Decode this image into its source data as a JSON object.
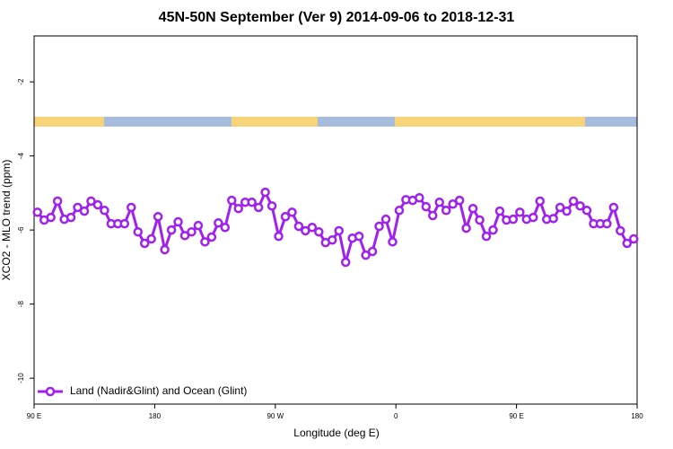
{
  "chart_data": {
    "type": "line",
    "title": "45N-50N September (Ver 9)   2014-09-06 to 2018-12-31",
    "xlabel": "Longitude (deg E)",
    "ylabel": "XCO2 - MLO trend (ppm)",
    "x": [
      92.5,
      97.5,
      102.5,
      107.5,
      112.5,
      117.5,
      122.5,
      127.5,
      132.5,
      137.5,
      142.5,
      147.5,
      152.5,
      157.5,
      162.5,
      167.5,
      172.5,
      177.5,
      182.5,
      187.5,
      192.5,
      197.5,
      202.5,
      207.5,
      212.5,
      217.5,
      222.5,
      227.5,
      232.5,
      237.5,
      242.5,
      247.5,
      252.5,
      257.5,
      262.5,
      267.5,
      272.5,
      277.5,
      282.5,
      287.5,
      292.5,
      297.5,
      302.5,
      307.5,
      312.5,
      317.5,
      322.5,
      327.5,
      332.5,
      337.5,
      342.5,
      347.5,
      352.5,
      357.5,
      362.5,
      367.5,
      372.5,
      377.5,
      382.5,
      387.5,
      392.5,
      397.5,
      402.5,
      407.5,
      412.5,
      417.5,
      422.5,
      427.5,
      432.5,
      437.5,
      442.5,
      447.5,
      452.5,
      457.5,
      462.5,
      467.5,
      472.5,
      477.5,
      482.5,
      487.5,
      492.5,
      497.5,
      502.5,
      507.5,
      512.5,
      517.5,
      522.5,
      527.5,
      532.5,
      537.5
    ],
    "series": [
      {
        "name": "Land (Nadir&Glint) and Ocean (Glint)",
        "color": "#a020f0",
        "values": [
          -5.52,
          -5.73,
          -5.66,
          -5.22,
          -5.71,
          -5.66,
          -5.39,
          -5.49,
          -5.22,
          -5.32,
          -5.47,
          -5.83,
          -5.83,
          -5.83,
          -5.39,
          -6.05,
          -6.36,
          -6.24,
          -5.64,
          -6.53,
          -6.0,
          -5.78,
          -6.15,
          -6.05,
          -5.88,
          -6.32,
          -6.19,
          -5.81,
          -5.93,
          -5.2,
          -5.42,
          -5.25,
          -5.25,
          -5.39,
          -4.98,
          -5.35,
          -6.17,
          -5.64,
          -5.52,
          -5.9,
          -6.02,
          -5.93,
          -6.05,
          -6.34,
          -6.27,
          -6.02,
          -6.87,
          -6.22,
          -6.17,
          -6.68,
          -6.58,
          -5.9,
          -5.71,
          -6.32,
          -5.47,
          -5.18,
          -5.2,
          -5.13,
          -5.37,
          -5.61,
          -5.25,
          -5.47,
          -5.3,
          -5.2,
          -5.95,
          -5.42,
          -5.73,
          -6.17,
          -6.0,
          -5.49,
          -5.73,
          -5.71,
          -5.52,
          -5.71,
          -5.66,
          -5.22,
          -5.71,
          -5.69,
          -5.39,
          -5.49,
          -5.22,
          -5.35,
          -5.47,
          -5.83,
          -5.83,
          -5.83,
          -5.39,
          -6.02,
          -6.36,
          -6.24
        ]
      }
    ],
    "xlim": [
      90,
      540
    ],
    "xticks": [
      {
        "value": 90,
        "label": "90 E"
      },
      {
        "value": 180,
        "label": "180"
      },
      {
        "value": 270,
        "label": "90 W"
      },
      {
        "value": 360,
        "label": "0"
      },
      {
        "value": 450,
        "label": "90 E"
      },
      {
        "value": 540,
        "label": "180"
      }
    ],
    "ylim": [
      -10.7,
      -0.76
    ],
    "yticks": [
      -10,
      -8,
      -6,
      -4,
      -2
    ],
    "legend": "bottom-left"
  }
}
